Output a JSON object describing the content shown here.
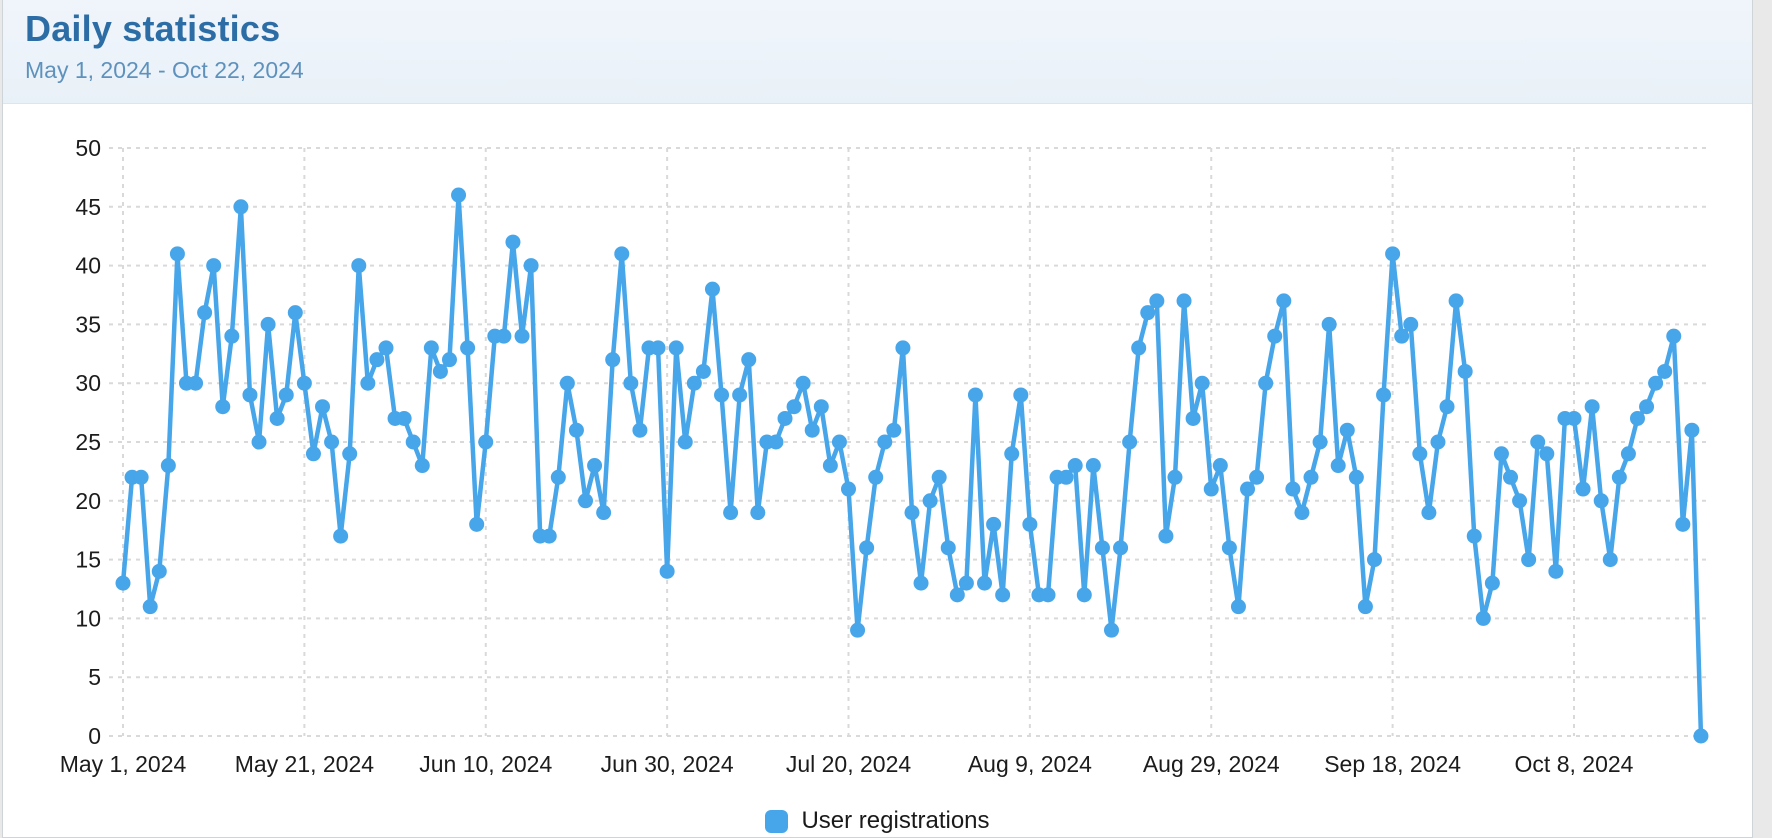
{
  "header": {
    "title": "Daily statistics",
    "subtitle": "May 1, 2024 - Oct 22, 2024"
  },
  "legend": {
    "label": "User registrations"
  },
  "colors": {
    "series": "#47a5e9",
    "title": "#2d6da6",
    "subtitle": "#5e92bd",
    "axis_text": "#1c1c1c",
    "grid": "#d9d9d9",
    "header_bg": "#edf3f9",
    "page_bg": "#e9e9e9"
  },
  "chart_data": {
    "type": "line",
    "title": "Daily statistics",
    "xlabel": "",
    "ylabel": "",
    "x_start_date": "May 1, 2024",
    "x_end_date": "Oct 22, 2024",
    "x_tick_labels": [
      "May 1, 2024",
      "May 21, 2024",
      "Jun 10, 2024",
      "Jun 30, 2024",
      "Jul 20, 2024",
      "Aug 9, 2024",
      "Aug 29, 2024",
      "Sep 18, 2024",
      "Oct 8, 2024"
    ],
    "x_tick_day_indices": [
      0,
      20,
      40,
      60,
      80,
      100,
      120,
      140,
      160
    ],
    "y_ticks": [
      0,
      5,
      10,
      15,
      20,
      25,
      30,
      35,
      40,
      45,
      50
    ],
    "ylim": [
      0,
      50
    ],
    "grid": "dashed",
    "legend_position": "bottom",
    "marker": "circle",
    "series": [
      {
        "name": "User registrations",
        "values": [
          13,
          22,
          22,
          11,
          14,
          23,
          41,
          30,
          30,
          36,
          40,
          28,
          34,
          45,
          29,
          25,
          35,
          27,
          29,
          36,
          30,
          24,
          28,
          25,
          17,
          24,
          40,
          30,
          32,
          33,
          27,
          27,
          25,
          23,
          33,
          31,
          32,
          46,
          33,
          18,
          25,
          34,
          34,
          42,
          34,
          40,
          17,
          17,
          22,
          30,
          26,
          20,
          23,
          19,
          32,
          41,
          30,
          26,
          33,
          33,
          14,
          33,
          25,
          30,
          31,
          38,
          29,
          19,
          29,
          32,
          19,
          25,
          25,
          27,
          28,
          30,
          26,
          28,
          23,
          25,
          21,
          9,
          16,
          22,
          25,
          26,
          33,
          19,
          13,
          20,
          22,
          16,
          12,
          13,
          29,
          13,
          18,
          12,
          24,
          29,
          18,
          12,
          12,
          22,
          22,
          23,
          12,
          23,
          16,
          9,
          16,
          25,
          33,
          36,
          37,
          17,
          22,
          37,
          27,
          30,
          21,
          23,
          16,
          11,
          21,
          22,
          30,
          34,
          37,
          21,
          19,
          22,
          25,
          35,
          23,
          26,
          22,
          11,
          15,
          29,
          41,
          34,
          35,
          24,
          19,
          25,
          28,
          37,
          31,
          17,
          10,
          13,
          24,
          22,
          20,
          15,
          25,
          24,
          14,
          27,
          27,
          21,
          28,
          20,
          15,
          22,
          24,
          27,
          28,
          30,
          31,
          34,
          18,
          26,
          0
        ]
      }
    ]
  }
}
